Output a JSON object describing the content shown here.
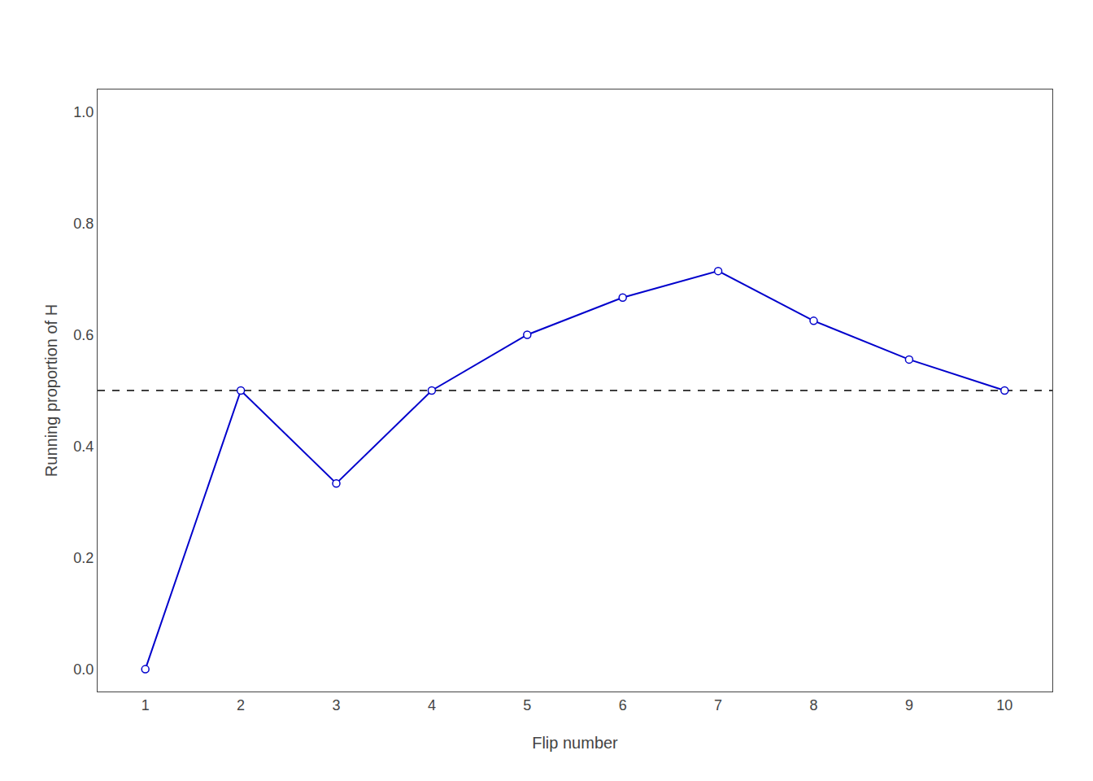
{
  "chart_data": {
    "type": "line",
    "x": [
      1,
      2,
      3,
      4,
      5,
      6,
      7,
      8,
      9,
      10
    ],
    "values": [
      0.0,
      0.5,
      0.3333,
      0.5,
      0.6,
      0.6667,
      0.7143,
      0.625,
      0.5556,
      0.5
    ],
    "color": "#0000CC",
    "marker": "circle",
    "line_style": "solid",
    "xlabel": "Flip number",
    "ylabel": "Running proportion of H",
    "xlim": [
      0.5,
      10.5
    ],
    "ylim": [
      -0.04,
      1.04
    ],
    "xticks": [
      1,
      2,
      3,
      4,
      5,
      6,
      7,
      8,
      9,
      10
    ],
    "yticks": [
      {
        "value": 0.0,
        "label": "0.0"
      },
      0.2,
      0.4,
      0.6,
      0.8,
      {
        "value": 1.0,
        "label": "1.0"
      }
    ],
    "hline": {
      "y": 0.5,
      "color": "black",
      "line_style": "dashed"
    },
    "grid": false
  }
}
